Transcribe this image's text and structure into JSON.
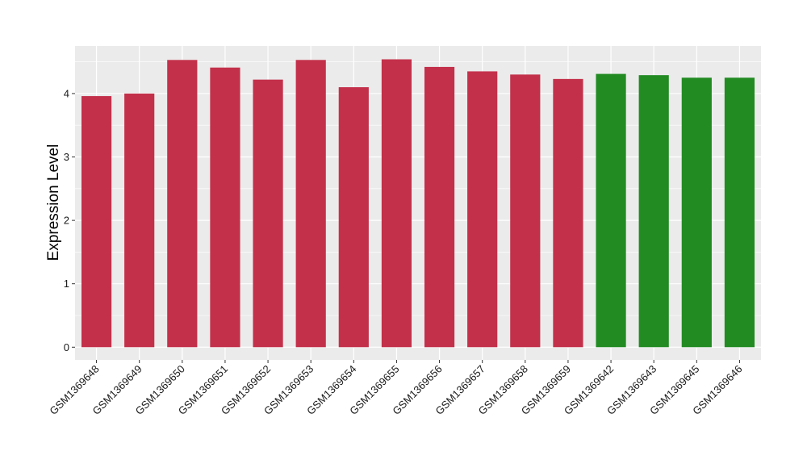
{
  "chart_data": {
    "type": "bar",
    "title": "",
    "xlabel": "",
    "ylabel": "Expression Level",
    "ylim": [
      -0.2,
      4.75
    ],
    "yticks": [
      0,
      1,
      2,
      3,
      4
    ],
    "grid": true,
    "categories": [
      "GSM1369648",
      "GSM1369649",
      "GSM1369650",
      "GSM1369651",
      "GSM1369652",
      "GSM1369653",
      "GSM1369654",
      "GSM1369655",
      "GSM1369656",
      "GSM1369657",
      "GSM1369658",
      "GSM1369659",
      "GSM1369642",
      "GSM1369643",
      "GSM1369645",
      "GSM1369646"
    ],
    "values": [
      3.96,
      4.0,
      4.53,
      4.41,
      4.22,
      4.53,
      4.1,
      4.54,
      4.42,
      4.35,
      4.3,
      4.23,
      4.31,
      4.29,
      4.25,
      4.25
    ],
    "bar_colors": [
      "#c3304a",
      "#c3304a",
      "#c3304a",
      "#c3304a",
      "#c3304a",
      "#c3304a",
      "#c3304a",
      "#c3304a",
      "#c3304a",
      "#c3304a",
      "#c3304a",
      "#c3304a",
      "#228b22",
      "#228b22",
      "#228b22",
      "#228b22"
    ],
    "panel_background": "#ebebeb",
    "grid_color": "#ffffff"
  }
}
